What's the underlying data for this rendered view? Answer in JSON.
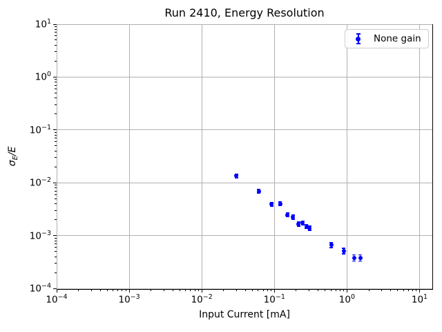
{
  "figure": {
    "title": "Run 2410, Energy Resolution",
    "xlabel": "Input Current [mA]",
    "ylabel": {
      "sigma": "σ",
      "sub": "E",
      "rest": "/E"
    },
    "legend": {
      "label": "None gain"
    },
    "colors": {
      "marker": "#0000ff",
      "grid": "#b0b0b0",
      "spine": "#000000",
      "legend_border": "#cccccc"
    }
  },
  "chart_data": {
    "type": "scatter",
    "title": "Run 2410, Energy Resolution",
    "xlabel": "Input Current [mA]",
    "ylabel": "σE/E",
    "xscale": "log",
    "yscale": "log",
    "xlim": [
      0.0001,
      15
    ],
    "ylim": [
      0.0001,
      10
    ],
    "x_tick_exponents": [
      -4,
      -3,
      -2,
      -1,
      0,
      1
    ],
    "y_tick_exponents": [
      -4,
      -3,
      -2,
      -1,
      0,
      1
    ],
    "grid": true,
    "legend_position": "upper right",
    "series": [
      {
        "name": "None gain",
        "color": "#0000ff",
        "marker": "circle-with-errorbar",
        "x": [
          0.03,
          0.061,
          0.092,
          0.121,
          0.152,
          0.18,
          0.214,
          0.245,
          0.276,
          0.305,
          0.61,
          0.9,
          1.25,
          1.52
        ],
        "y": [
          0.0135,
          0.0069,
          0.0039,
          0.004,
          0.00245,
          0.00225,
          0.00165,
          0.00175,
          0.0015,
          0.00138,
          0.00066,
          0.00051,
          0.00038,
          0.00038
        ],
        "yerr": [
          0.001,
          0.0005,
          0.0003,
          0.0003,
          0.0002,
          0.0002,
          0.00015,
          0.00015,
          0.00013,
          0.00012,
          7e-05,
          6e-05,
          5e-05,
          5e-05
        ]
      }
    ]
  }
}
